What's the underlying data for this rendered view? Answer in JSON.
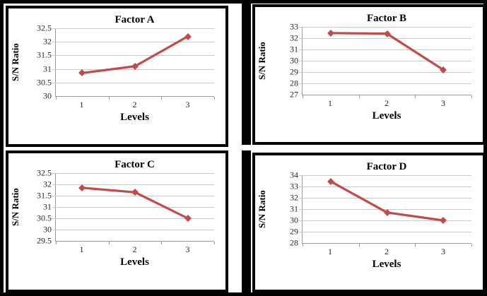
{
  "colors": {
    "line": "#C34B47",
    "grid": "#C9C9C9",
    "axis": "#9A9A9A",
    "border": "#000000",
    "background": "#FFFFFF"
  },
  "chart_data": [
    {
      "type": "line",
      "title": "Factor A",
      "xlabel": "Levels",
      "ylabel": "S/N Ratio",
      "categories": [
        "1",
        "2",
        "3"
      ],
      "values": [
        30.85,
        31.1,
        32.2
      ],
      "ylim": [
        30,
        32.5
      ],
      "yticks": [
        "32.5",
        "32",
        "31.5",
        "31",
        "30.5",
        "30"
      ],
      "grid": true,
      "marker": "diamond",
      "legend": false
    },
    {
      "type": "line",
      "title": "Factor B",
      "xlabel": "Levels",
      "ylabel": "S/N Ratio",
      "categories": [
        "1",
        "2",
        "3"
      ],
      "values": [
        32.45,
        32.4,
        29.2
      ],
      "ylim": [
        27,
        33
      ],
      "yticks": [
        "33",
        "32",
        "31",
        "30",
        "29",
        "28",
        "27"
      ],
      "grid": true,
      "marker": "diamond",
      "legend": false
    },
    {
      "type": "line",
      "title": "Factor C",
      "xlabel": "Levels",
      "ylabel": "S/N Ratio",
      "categories": [
        "1",
        "2",
        "3"
      ],
      "values": [
        31.85,
        31.65,
        30.5
      ],
      "ylim": [
        29.5,
        32.5
      ],
      "yticks": [
        "32.5",
        "32",
        "31.5",
        "31",
        "30.5",
        "30",
        "29.5"
      ],
      "grid": true,
      "marker": "diamond",
      "legend": false
    },
    {
      "type": "line",
      "title": "Factor D",
      "xlabel": "Levels",
      "ylabel": "S/N Ratio",
      "categories": [
        "1",
        "2",
        "3"
      ],
      "values": [
        33.45,
        30.7,
        30.0
      ],
      "ylim": [
        28,
        34
      ],
      "yticks": [
        "34",
        "33",
        "32",
        "31",
        "30",
        "29",
        "28"
      ],
      "grid": true,
      "marker": "diamond",
      "legend": false
    }
  ]
}
